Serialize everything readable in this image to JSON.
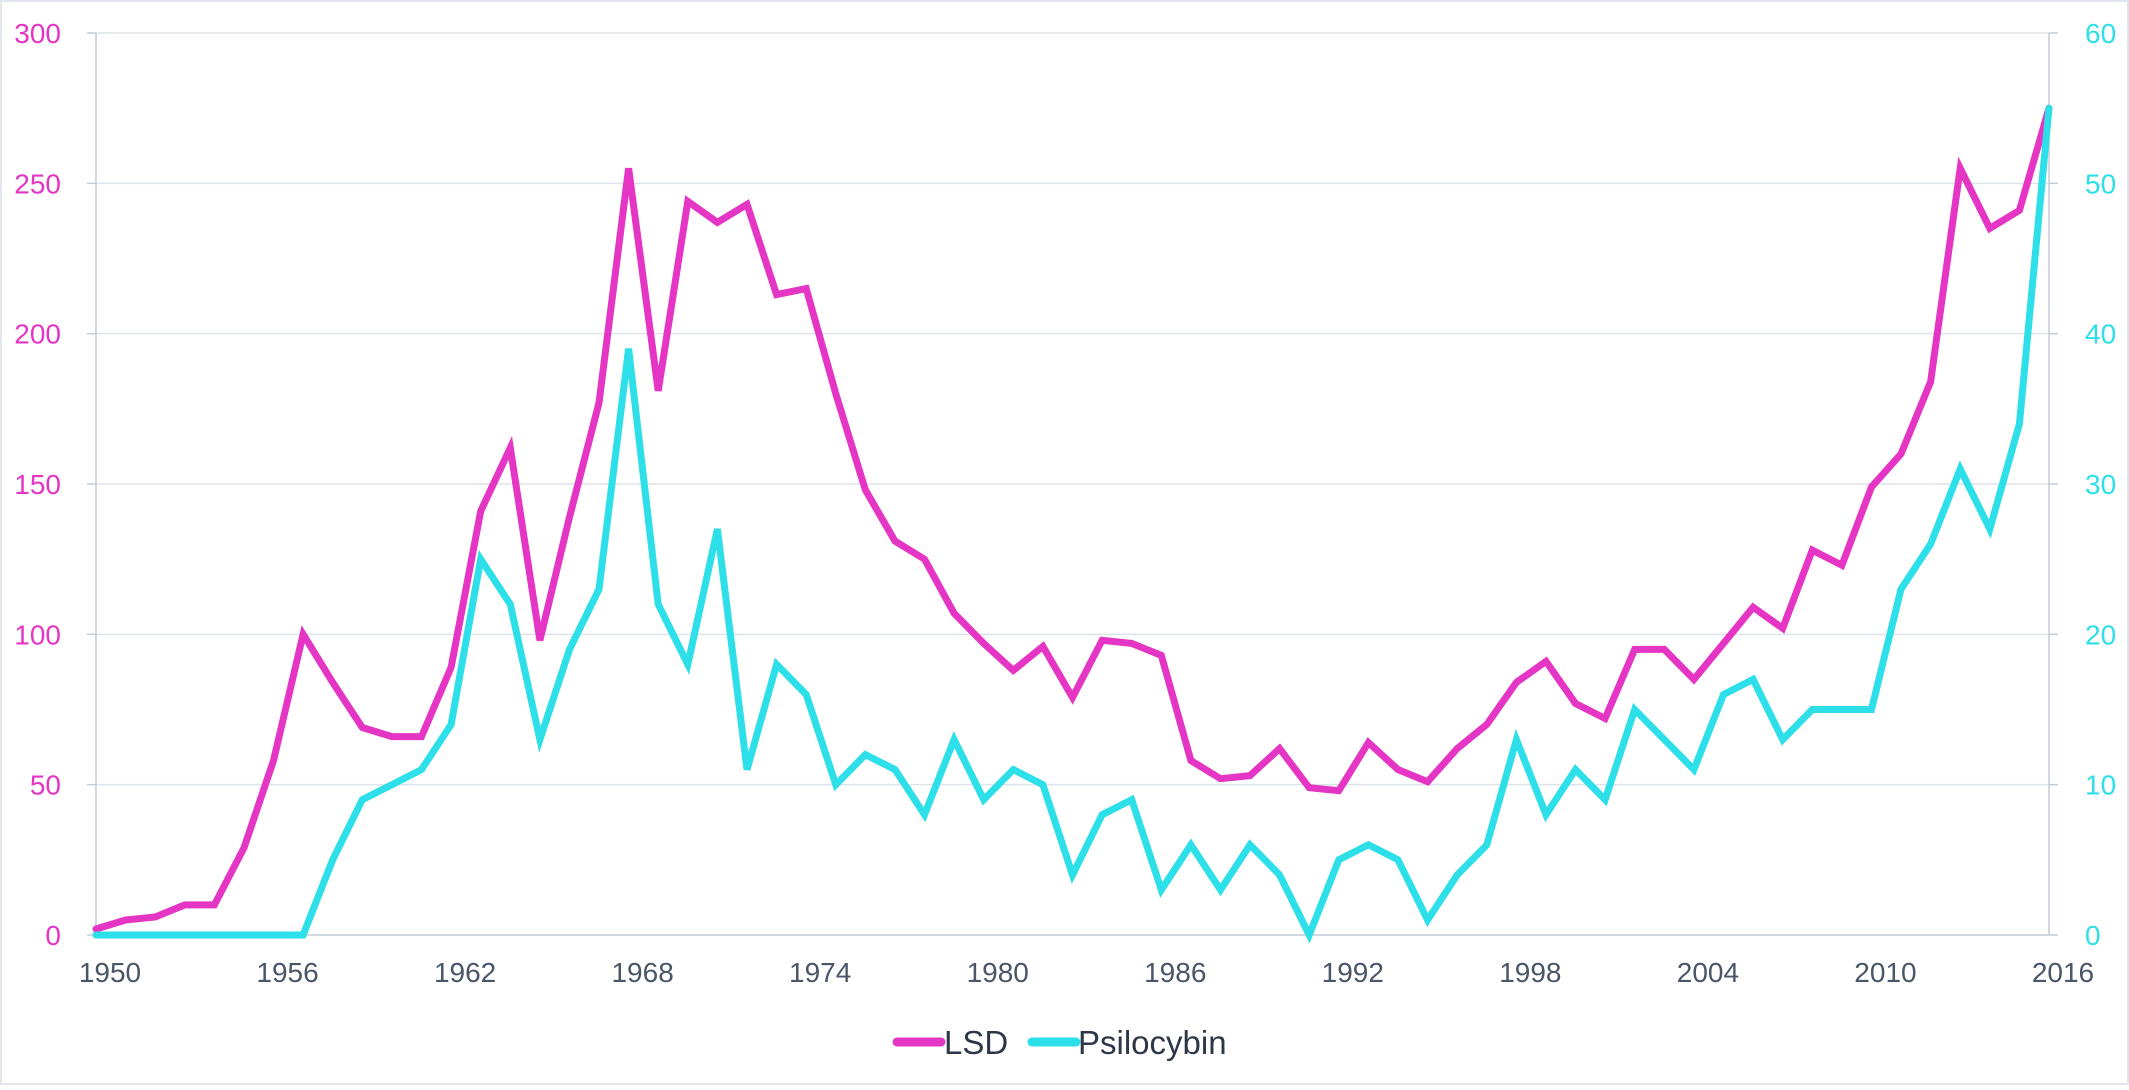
{
  "chart_data": {
    "type": "line",
    "title": "",
    "xlabel": "",
    "ylabel": "",
    "x": [
      1950,
      1951,
      1952,
      1953,
      1954,
      1955,
      1956,
      1957,
      1958,
      1959,
      1960,
      1961,
      1962,
      1963,
      1964,
      1965,
      1966,
      1967,
      1968,
      1969,
      1970,
      1971,
      1972,
      1973,
      1974,
      1975,
      1976,
      1977,
      1978,
      1979,
      1980,
      1981,
      1982,
      1983,
      1984,
      1985,
      1986,
      1987,
      1988,
      1989,
      1990,
      1991,
      1992,
      1993,
      1994,
      1995,
      1996,
      1997,
      1998,
      1999,
      2000,
      2001,
      2002,
      2003,
      2004,
      2005,
      2006,
      2007,
      2008,
      2009,
      2010,
      2011,
      2012,
      2013,
      2014,
      2015,
      2016
    ],
    "xlim": [
      1950,
      2016
    ],
    "x_ticks": [
      "1950",
      "1956",
      "1962",
      "1968",
      "1974",
      "1980",
      "1986",
      "1992",
      "1998",
      "2004",
      "2010",
      "2016"
    ],
    "y_left": {
      "lim": [
        0,
        300
      ],
      "ticks": [
        "0",
        "50",
        "100",
        "150",
        "200",
        "250",
        "300"
      ],
      "color": "#e535c5"
    },
    "y_right": {
      "lim": [
        0,
        60
      ],
      "ticks": [
        "0",
        "10",
        "20",
        "30",
        "40",
        "50",
        "60"
      ],
      "color": "#2ddfe8"
    },
    "grid": true,
    "legend_position": "bottom-center",
    "series": [
      {
        "name": "LSD",
        "axis": "left",
        "color": "#e535c5",
        "values": [
          2,
          5,
          6,
          10,
          10,
          29,
          58,
          100,
          84,
          69,
          66,
          66,
          89,
          141,
          162,
          98,
          139,
          177,
          255,
          181,
          244,
          237,
          243,
          213,
          215,
          180,
          148,
          131,
          125,
          107,
          97,
          88,
          96,
          79,
          98,
          97,
          93,
          58,
          52,
          53,
          62,
          49,
          48,
          64,
          55,
          51,
          62,
          70,
          84,
          91,
          77,
          72,
          95,
          95,
          85,
          97,
          109,
          102,
          128,
          123,
          149,
          160,
          184,
          255,
          235,
          241,
          275
        ]
      },
      {
        "name": "Psilocybin",
        "axis": "right",
        "color": "#2ddfe8",
        "values": [
          0,
          0,
          0,
          0,
          0,
          0,
          0,
          0,
          5,
          9,
          10,
          11,
          14,
          25,
          22,
          13,
          19,
          23,
          39,
          22,
          18,
          27,
          11,
          18,
          16,
          10,
          12,
          11,
          8,
          13,
          9,
          11,
          10,
          4,
          8,
          9,
          3,
          6,
          3,
          6,
          4,
          0,
          5,
          6,
          5,
          1,
          4,
          6,
          13,
          8,
          11,
          9,
          15,
          13,
          11,
          16,
          17,
          13,
          15,
          15,
          15,
          23,
          26,
          31,
          27,
          34,
          55
        ]
      }
    ]
  }
}
